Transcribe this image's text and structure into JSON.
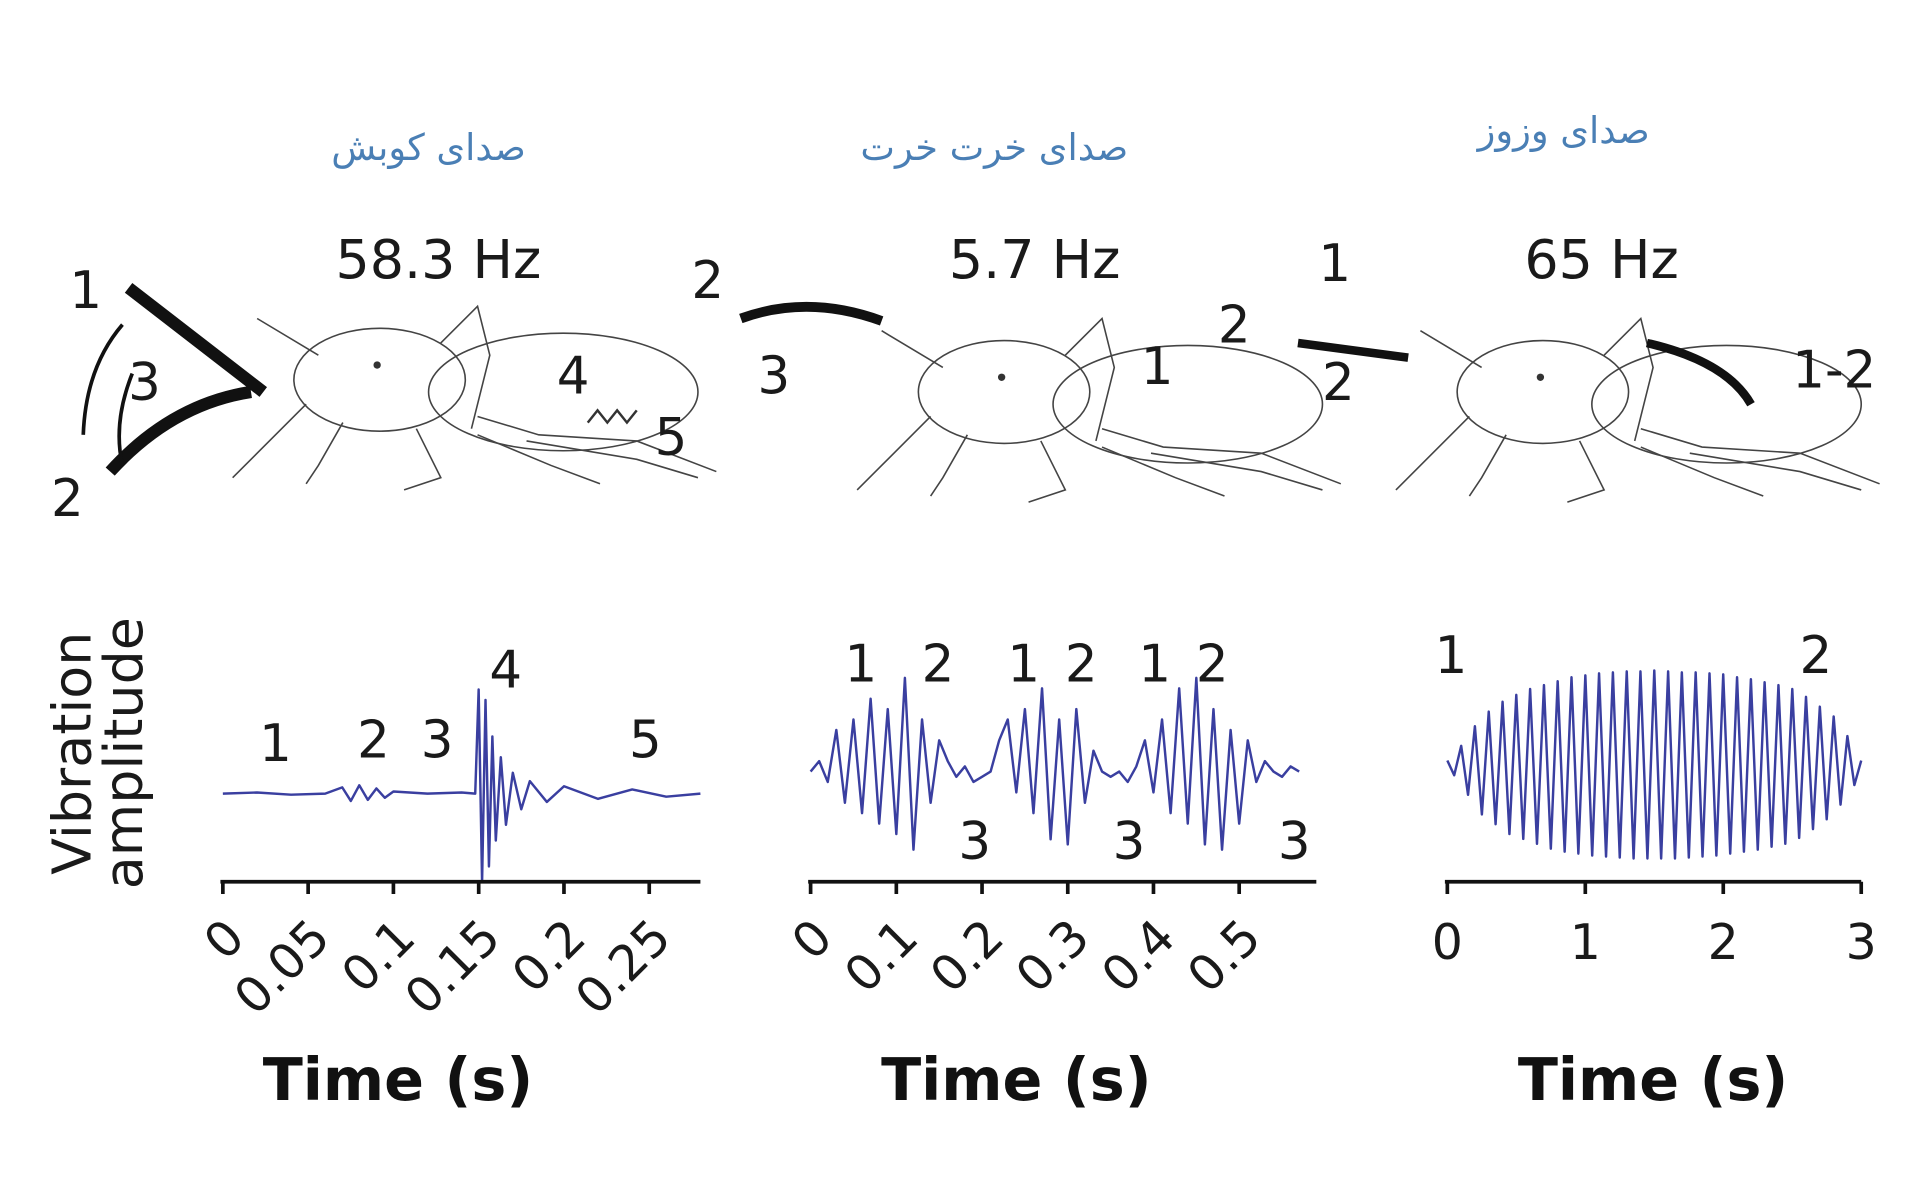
{
  "chart_data": [
    {
      "type": "line",
      "title": "صدای کوبش",
      "frequency": "58.3 Hz",
      "xlabel": "Time (s)",
      "ylabel": [
        "Vibration",
        "amplitude"
      ],
      "xlim": [
        0,
        0.28
      ],
      "xticks": [
        0,
        0.05,
        0.1,
        0.15,
        0.2,
        0.25
      ],
      "xtick_rotation": 45,
      "ylim": [
        -1,
        1
      ],
      "color": "#3a3fa0",
      "x": [
        0,
        0.02,
        0.04,
        0.06,
        0.07,
        0.075,
        0.08,
        0.085,
        0.09,
        0.095,
        0.1,
        0.12,
        0.14,
        0.148,
        0.15,
        0.152,
        0.154,
        0.156,
        0.158,
        0.16,
        0.163,
        0.166,
        0.17,
        0.175,
        0.18,
        0.19,
        0.2,
        0.22,
        0.24,
        0.26,
        0.28
      ],
      "values": [
        0,
        0.01,
        -0.01,
        0,
        0.06,
        -0.07,
        0.08,
        -0.06,
        0.05,
        -0.04,
        0.02,
        0,
        0.01,
        0,
        1,
        -0.85,
        0.9,
        -0.7,
        0.55,
        -0.45,
        0.35,
        -0.3,
        0.2,
        -0.15,
        0.12,
        -0.08,
        0.07,
        -0.05,
        0.04,
        -0.03,
        0
      ],
      "wave_labels": [
        "1",
        "2",
        "3",
        "4",
        "5"
      ],
      "drawing_labels": [
        "1",
        "3",
        "2",
        "4",
        "5"
      ]
    },
    {
      "type": "line",
      "title": "صدای خرت خرت",
      "frequency": "5.7 Hz",
      "xlabel": "Time (s)",
      "xlim": [
        0,
        0.59
      ],
      "xticks": [
        0,
        0.1,
        0.2,
        0.3,
        0.4,
        0.5
      ],
      "xtick_rotation": 45,
      "ylim": [
        -1,
        1
      ],
      "color": "#3a3fa0",
      "x": [
        0,
        0.01,
        0.02,
        0.03,
        0.04,
        0.05,
        0.06,
        0.07,
        0.08,
        0.09,
        0.1,
        0.11,
        0.12,
        0.13,
        0.14,
        0.15,
        0.16,
        0.17,
        0.18,
        0.19,
        0.2,
        0.21,
        0.22,
        0.23,
        0.24,
        0.25,
        0.26,
        0.27,
        0.28,
        0.29,
        0.3,
        0.31,
        0.32,
        0.33,
        0.34,
        0.35,
        0.36,
        0.37,
        0.38,
        0.39,
        0.4,
        0.41,
        0.42,
        0.43,
        0.44,
        0.45,
        0.46,
        0.47,
        0.48,
        0.49,
        0.5,
        0.51,
        0.52,
        0.53,
        0.54,
        0.55,
        0.56,
        0.57
      ],
      "values": [
        0,
        0.1,
        -0.1,
        0.4,
        -0.3,
        0.5,
        -0.4,
        0.7,
        -0.5,
        0.6,
        -0.6,
        0.9,
        -0.75,
        0.5,
        -0.3,
        0.3,
        0.1,
        -0.05,
        0.05,
        -0.1,
        -0.05,
        0,
        0.3,
        0.5,
        -0.2,
        0.6,
        -0.4,
        0.8,
        -0.65,
        0.5,
        -0.7,
        0.6,
        -0.3,
        0.2,
        0,
        -0.05,
        0,
        -0.1,
        0.05,
        0.3,
        -0.2,
        0.5,
        -0.4,
        0.8,
        -0.5,
        0.9,
        -0.7,
        0.6,
        -0.75,
        0.4,
        -0.5,
        0.3,
        -0.1,
        0.1,
        0,
        -0.05,
        0.05,
        0
      ],
      "wave_labels": [
        "1",
        "2",
        "1",
        "2",
        "1",
        "2",
        "3",
        "3",
        "3"
      ],
      "drawing_labels": [
        "2",
        "3",
        "1",
        "2"
      ]
    },
    {
      "type": "line",
      "title": "صدای وزوز",
      "frequency": "65 Hz",
      "xlabel": "Time (s)",
      "xlim": [
        0,
        3
      ],
      "xticks": [
        0,
        1,
        2,
        3
      ],
      "xtick_rotation": 0,
      "ylim": [
        -1,
        1
      ],
      "color": "#3a3fa0",
      "x": [
        0,
        0.05,
        0.1,
        0.15,
        0.2,
        0.25,
        0.3,
        0.35,
        0.4,
        0.45,
        0.5,
        0.55,
        0.6,
        0.65,
        0.7,
        0.75,
        0.8,
        0.85,
        0.9,
        0.95,
        1,
        1.05,
        1.1,
        1.15,
        1.2,
        1.25,
        1.3,
        1.35,
        1.4,
        1.45,
        1.5,
        1.55,
        1.6,
        1.65,
        1.7,
        1.75,
        1.8,
        1.85,
        1.9,
        1.95,
        2,
        2.05,
        2.1,
        2.15,
        2.2,
        2.25,
        2.3,
        2.35,
        2.4,
        2.45,
        2.5,
        2.55,
        2.6,
        2.65,
        2.7,
        2.75,
        2.8,
        2.85,
        2.9,
        2.95,
        3
      ],
      "values": [
        0.05,
        -0.1,
        0.2,
        -0.3,
        0.4,
        -0.5,
        0.55,
        -0.6,
        0.65,
        -0.7,
        0.72,
        -0.75,
        0.78,
        -0.8,
        0.82,
        -0.85,
        0.86,
        -0.88,
        0.9,
        -0.9,
        0.92,
        -0.92,
        0.94,
        -0.93,
        0.95,
        -0.94,
        0.96,
        -0.95,
        0.96,
        -0.95,
        0.97,
        -0.95,
        0.96,
        -0.95,
        0.95,
        -0.94,
        0.95,
        -0.93,
        0.94,
        -0.92,
        0.93,
        -0.9,
        0.9,
        -0.88,
        0.88,
        -0.86,
        0.85,
        -0.83,
        0.82,
        -0.8,
        0.78,
        -0.74,
        0.7,
        -0.65,
        0.6,
        -0.55,
        0.5,
        -0.4,
        0.3,
        -0.2,
        0.05
      ],
      "wave_labels": [
        "1",
        "2"
      ],
      "drawing_labels": [
        "1",
        "2",
        "1-2"
      ]
    }
  ]
}
